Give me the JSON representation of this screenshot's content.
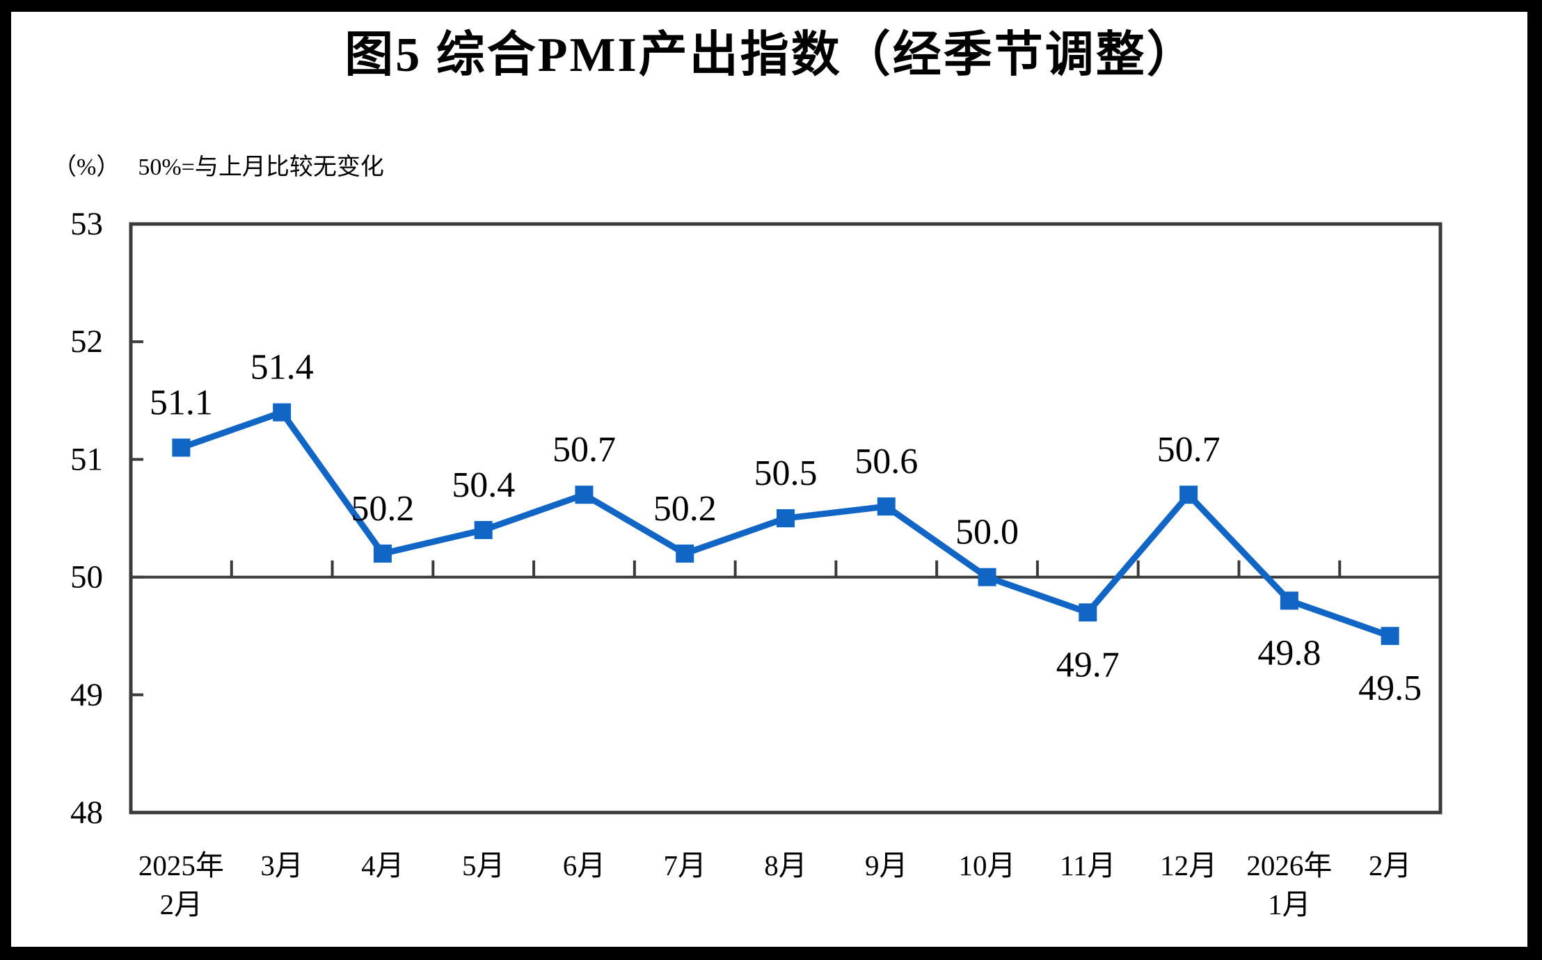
{
  "page": {
    "background": "#ffffff",
    "outer_frame": "#000000"
  },
  "chart_data": {
    "type": "line",
    "title": "图5  综合PMI产出指数（经季节调整）",
    "unit_label": "（%）",
    "note": "50%=与上月比较无变化",
    "categories": [
      [
        "2025年",
        "2月"
      ],
      [
        "3月"
      ],
      [
        "4月"
      ],
      [
        "5月"
      ],
      [
        "6月"
      ],
      [
        "7月"
      ],
      [
        "8月"
      ],
      [
        "9月"
      ],
      [
        "10月"
      ],
      [
        "11月"
      ],
      [
        "12月"
      ],
      [
        "2026年",
        "1月"
      ],
      [
        "2月"
      ]
    ],
    "series": [
      {
        "name": "综合PMI产出指数",
        "values": [
          51.1,
          51.4,
          50.2,
          50.4,
          50.7,
          50.2,
          50.5,
          50.6,
          50.0,
          49.7,
          50.7,
          49.8,
          49.5
        ]
      }
    ],
    "value_decimals": 1,
    "ylim": [
      48,
      53
    ],
    "yticks": [
      48,
      49,
      50,
      51,
      52,
      53
    ],
    "reference_line": 50,
    "grid": "off",
    "legend": "none",
    "colors": {
      "line": "#1065C5",
      "marker": "#1065C5",
      "axis": "#3a3a3a",
      "text": "#000000"
    }
  }
}
